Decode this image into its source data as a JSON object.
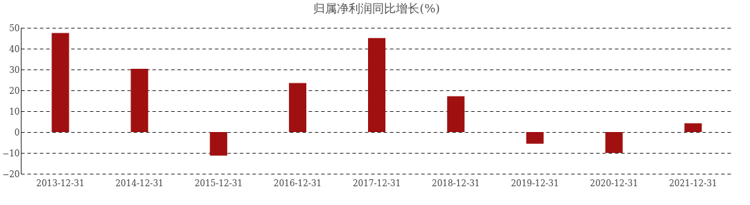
{
  "chart_data": {
    "type": "bar",
    "title": "归属净利润同比增长(%)",
    "categories": [
      "2013-12-31",
      "2014-12-31",
      "2015-12-31",
      "2016-12-31",
      "2017-12-31",
      "2018-12-31",
      "2019-12-31",
      "2020-12-31",
      "2021-12-31"
    ],
    "values": [
      47.5,
      30.3,
      -11.3,
      23.5,
      45.1,
      17.2,
      -5.6,
      -10.0,
      4.2
    ],
    "color": "#a01010",
    "ylim": [
      -20,
      50
    ],
    "yticks": [
      -20,
      -10,
      0,
      10,
      20,
      30,
      40,
      50
    ],
    "grid": "y"
  }
}
